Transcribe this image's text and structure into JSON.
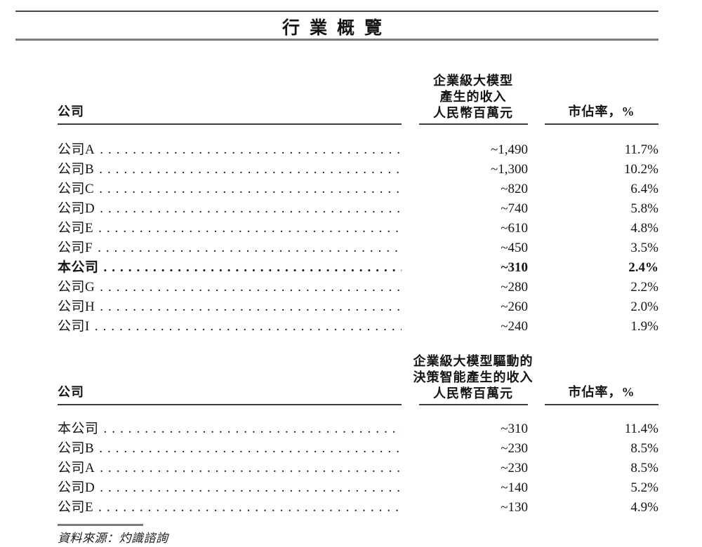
{
  "title": "行業概覽",
  "tables": [
    {
      "company_header": "公司",
      "value_header_lines": [
        "企業級大模型",
        "產生的收入",
        "人民幣百萬元"
      ],
      "share_header": "市佔率，%",
      "rows": [
        {
          "company": "公司A",
          "value": "~1,490",
          "share": "11.7%",
          "bold": false
        },
        {
          "company": "公司B",
          "value": "~1,300",
          "share": "10.2%",
          "bold": false
        },
        {
          "company": "公司C",
          "value": "~820",
          "share": "6.4%",
          "bold": false
        },
        {
          "company": "公司D",
          "value": "~740",
          "share": "5.8%",
          "bold": false
        },
        {
          "company": "公司E",
          "value": "~610",
          "share": "4.8%",
          "bold": false
        },
        {
          "company": "公司F",
          "value": "~450",
          "share": "3.5%",
          "bold": false
        },
        {
          "company": "本公司",
          "value": "~310",
          "share": "2.4%",
          "bold": true
        },
        {
          "company": "公司G",
          "value": "~280",
          "share": "2.2%",
          "bold": false
        },
        {
          "company": "公司H",
          "value": "~260",
          "share": "2.0%",
          "bold": false
        },
        {
          "company": "公司I",
          "value": "~240",
          "share": "1.9%",
          "bold": false
        }
      ]
    },
    {
      "company_header": "公司",
      "value_header_lines": [
        "企業級大模型驅動的",
        "決策智能產生的收入",
        "人民幣百萬元"
      ],
      "share_header": "市佔率，%",
      "rows": [
        {
          "company": "本公司",
          "value": "~310",
          "share": "11.4%",
          "bold": false
        },
        {
          "company": "公司B",
          "value": "~230",
          "share": "8.5%",
          "bold": false
        },
        {
          "company": "公司A",
          "value": "~230",
          "share": "8.5%",
          "bold": false
        },
        {
          "company": "公司D",
          "value": "~140",
          "share": "5.2%",
          "bold": false
        },
        {
          "company": "公司E",
          "value": "~130",
          "share": "4.9%",
          "bold": false
        }
      ]
    }
  ],
  "footer": {
    "source": "資料來源：灼識諮詢"
  }
}
